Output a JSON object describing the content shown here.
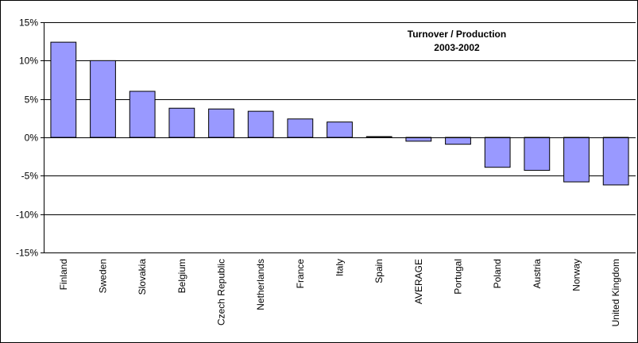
{
  "chart_data": {
    "type": "bar",
    "title": "Turnover / Production",
    "subtitle": "2003-2002",
    "xlabel": "",
    "ylabel": "",
    "categories": [
      "Finland",
      "Sweden",
      "Slovakia",
      "Belgium",
      "Czech Republic",
      "Netherlands",
      "France",
      "Italy",
      "Spain",
      "AVERAGE",
      "Portugal",
      "Poland",
      "Austria",
      "Norway",
      "United Kingdom"
    ],
    "values": [
      12.4,
      10.0,
      6.0,
      3.8,
      3.7,
      3.4,
      2.4,
      2.0,
      0.1,
      -0.5,
      -0.9,
      -3.9,
      -4.3,
      -5.8,
      -6.2
    ],
    "ylim": [
      -15,
      15
    ],
    "yticks": [
      15,
      10,
      5,
      0,
      -5,
      -10,
      -15
    ],
    "ytick_labels": [
      "15%",
      "10%",
      "5%",
      "0%",
      "-5%",
      "-10%",
      "-15%"
    ],
    "grid": true,
    "legend": "none",
    "colors": {
      "bar_fill": "#9999ff",
      "bar_stroke": "#000000",
      "grid": "#000000",
      "background": "#ffffff"
    }
  }
}
